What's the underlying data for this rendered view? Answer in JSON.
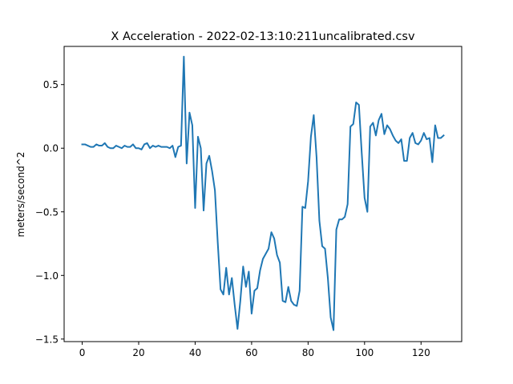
{
  "chart_data": {
    "type": "line",
    "title": "X Acceleration - 2022-02-13:10:211uncalibrated.csv",
    "xlabel": "",
    "ylabel": "meters/second^2",
    "xlim": [
      -6.4,
      134.4
    ],
    "ylim": [
      -1.52,
      0.8
    ],
    "xticks": [
      0,
      20,
      40,
      60,
      80,
      100,
      120
    ],
    "yticks": [
      -1.5,
      -1.0,
      -0.5,
      0.0,
      0.5
    ],
    "ytick_labels": [
      "−1.5",
      "−1.0",
      "−0.5",
      "0.0",
      "0.5"
    ],
    "grid": false,
    "line_color": "#1f77b4",
    "series": [
      {
        "x": [
          0,
          1,
          2,
          3,
          4,
          5,
          6,
          7,
          8,
          9,
          10,
          11,
          12,
          13,
          14,
          15,
          16,
          17,
          18,
          19,
          20,
          21,
          22,
          23,
          24,
          25,
          26,
          27,
          28,
          29,
          30,
          31,
          32,
          33,
          34,
          35,
          36,
          37,
          38,
          39,
          40,
          41,
          42,
          43,
          44,
          45,
          46,
          47,
          48,
          49,
          50,
          51,
          52,
          53,
          54,
          55,
          56,
          57,
          58,
          59,
          60,
          61,
          62,
          63,
          64,
          65,
          66,
          67,
          68,
          69,
          70,
          71,
          72,
          73,
          74,
          75,
          76,
          77,
          78,
          79,
          80,
          81,
          82,
          83,
          84,
          85,
          86,
          87,
          88,
          89,
          90,
          91,
          92,
          93,
          94,
          95,
          96,
          97,
          98,
          99,
          100,
          101,
          102,
          103,
          104,
          105,
          106,
          107,
          108,
          109,
          110,
          111,
          112,
          113,
          114,
          115,
          116,
          117,
          118,
          119,
          120,
          121,
          122,
          123,
          124,
          125,
          126,
          127,
          128
        ],
        "values": [
          0.03,
          0.03,
          0.02,
          0.01,
          0.01,
          0.03,
          0.02,
          0.02,
          0.04,
          0.01,
          0.0,
          0.0,
          0.02,
          0.01,
          0.0,
          0.02,
          0.01,
          0.01,
          0.03,
          0.0,
          0.0,
          -0.01,
          0.03,
          0.04,
          0.0,
          0.02,
          0.01,
          0.02,
          0.01,
          0.01,
          0.01,
          0.0,
          0.02,
          -0.07,
          0.01,
          0.02,
          0.72,
          -0.12,
          0.28,
          0.18,
          -0.47,
          0.09,
          0.0,
          -0.49,
          -0.12,
          -0.06,
          -0.18,
          -0.33,
          -0.74,
          -1.11,
          -1.15,
          -0.94,
          -1.15,
          -1.02,
          -1.23,
          -1.42,
          -1.2,
          -0.93,
          -1.09,
          -0.97,
          -1.3,
          -1.12,
          -1.1,
          -0.96,
          -0.87,
          -0.83,
          -0.79,
          -0.66,
          -0.71,
          -0.84,
          -0.9,
          -1.2,
          -1.21,
          -1.09,
          -1.2,
          -1.23,
          -1.24,
          -1.12,
          -0.46,
          -0.47,
          -0.26,
          0.09,
          0.26,
          -0.07,
          -0.57,
          -0.77,
          -0.79,
          -1.02,
          -1.33,
          -1.43,
          -0.64,
          -0.56,
          -0.56,
          -0.54,
          -0.44,
          0.17,
          0.19,
          0.36,
          0.34,
          -0.04,
          -0.39,
          -0.5,
          0.17,
          0.2,
          0.1,
          0.22,
          0.27,
          0.11,
          0.18,
          0.15,
          0.1,
          0.06,
          0.04,
          0.07,
          -0.1,
          -0.1,
          0.08,
          0.12,
          0.04,
          0.03,
          0.06,
          0.12,
          0.07,
          0.08,
          -0.11,
          0.18,
          0.08,
          0.08,
          0.1
        ]
      }
    ]
  }
}
